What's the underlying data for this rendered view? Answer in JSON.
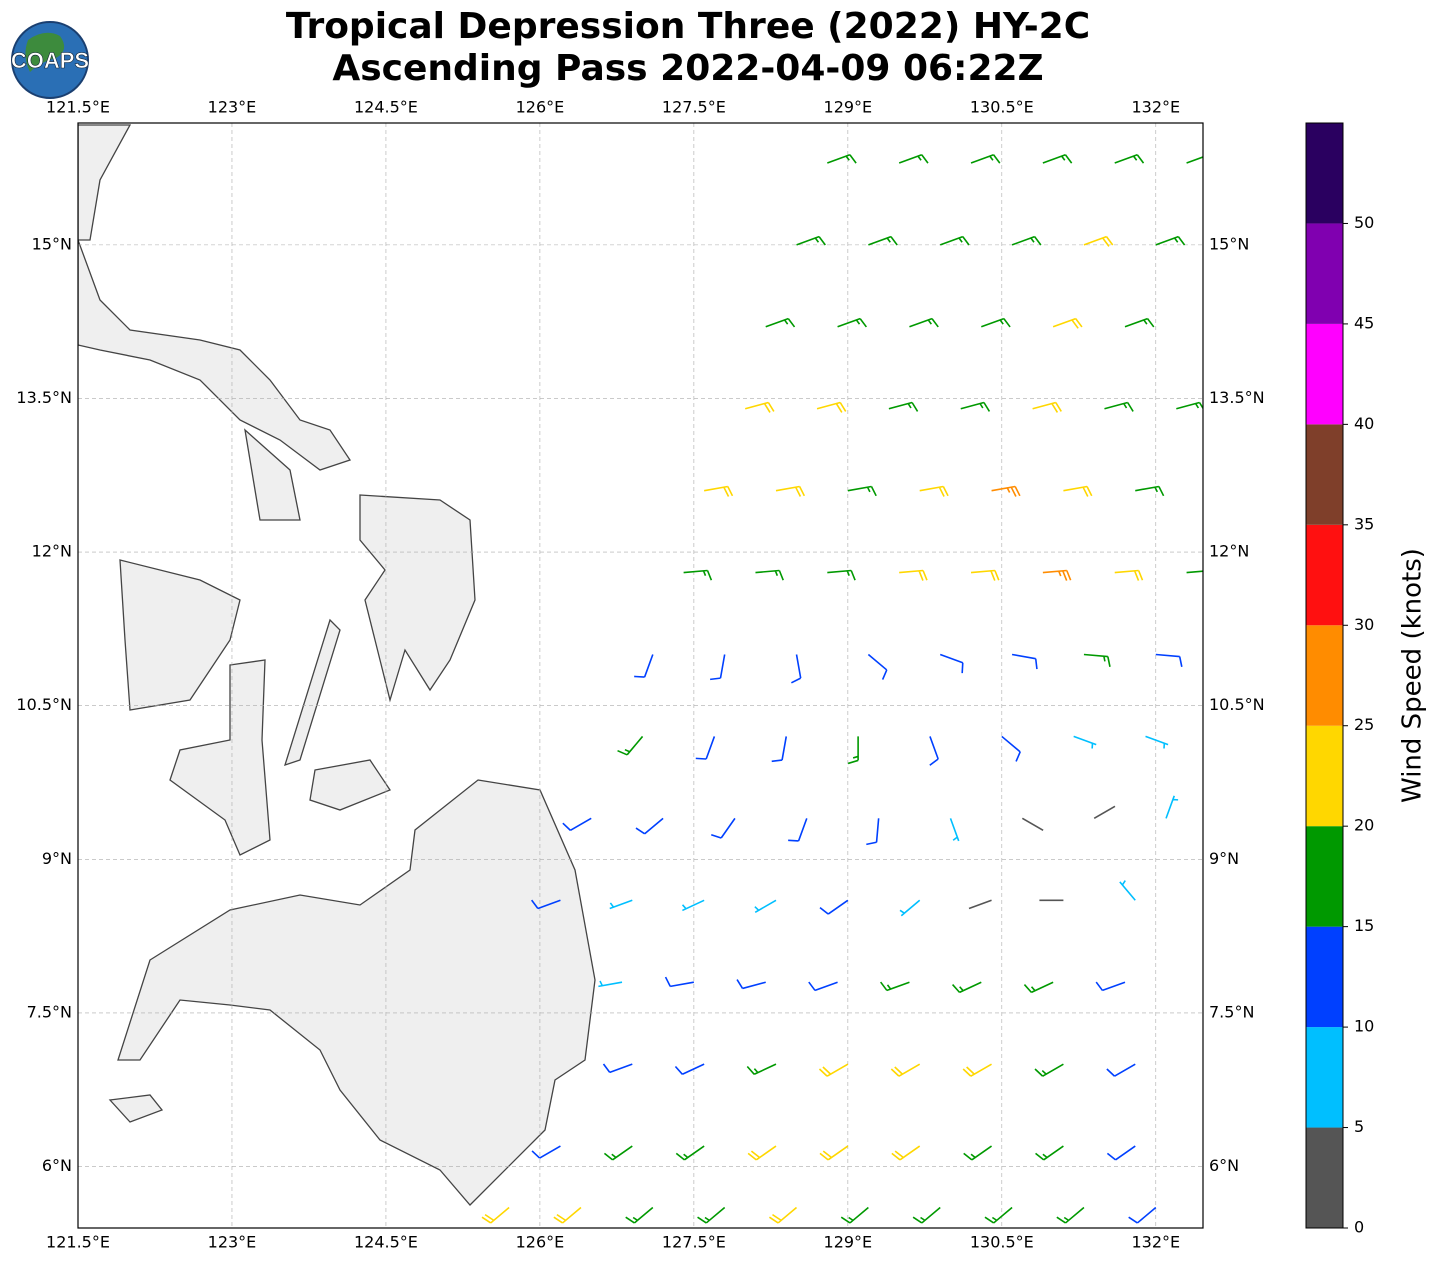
{
  "logo": "COAPS",
  "map_data": {
    "title": "Tropical Depression Three (2022) HY-2C",
    "subtitle": "Ascending Pass 2022-04-09 06:22Z",
    "xlim": [
      121.5,
      132.46
    ],
    "ylim": [
      5.4,
      16.19
    ],
    "xticks": [
      {
        "value": 121.5,
        "label": "121.5°E"
      },
      {
        "value": 123,
        "label": "123°E"
      },
      {
        "value": 124.5,
        "label": "124.5°E"
      },
      {
        "value": 126,
        "label": "126°E"
      },
      {
        "value": 127.5,
        "label": "127.5°E"
      },
      {
        "value": 129,
        "label": "129°E"
      },
      {
        "value": 130.5,
        "label": "130.5°E"
      },
      {
        "value": 132,
        "label": "132°E"
      }
    ],
    "yticks": [
      {
        "value": 6,
        "label": "6°N"
      },
      {
        "value": 7.5,
        "label": "7.5°N"
      },
      {
        "value": 9,
        "label": "9°N"
      },
      {
        "value": 10.5,
        "label": "10.5°N"
      },
      {
        "value": 12,
        "label": "12°N"
      },
      {
        "value": 13.5,
        "label": "13.5°N"
      },
      {
        "value": 15,
        "label": "15°N"
      }
    ],
    "grid": true,
    "colorbar": {
      "label": "Wind Speed (knots)",
      "lim": [
        0,
        55
      ],
      "bounds": [
        0,
        5,
        10,
        15,
        20,
        25,
        30,
        35,
        40,
        45,
        50,
        55
      ],
      "colors": [
        "#555555",
        "#00bfff",
        "#0040ff",
        "#009900",
        "#ffd700",
        "#ff8c00",
        "#ff1010",
        "#7f3f2a",
        "#ff00ff",
        "#8000b0",
        "#2a0060"
      ],
      "ticks": [
        0,
        5,
        10,
        15,
        20,
        25,
        30,
        35,
        40,
        45,
        50
      ]
    },
    "winds": [
      [
        128.8,
        15.8,
        17,
        70
      ],
      [
        129.5,
        15.8,
        17,
        70
      ],
      [
        130.2,
        15.8,
        17,
        70
      ],
      [
        130.9,
        15.8,
        17,
        70
      ],
      [
        131.6,
        15.8,
        17,
        70
      ],
      [
        132.3,
        15.8,
        17,
        70
      ],
      [
        128.5,
        15.0,
        17,
        70
      ],
      [
        129.2,
        15.0,
        17,
        70
      ],
      [
        129.9,
        15.0,
        17,
        70
      ],
      [
        130.6,
        15.0,
        17,
        70
      ],
      [
        131.3,
        15.0,
        22,
        70
      ],
      [
        132.0,
        15.0,
        17,
        70
      ],
      [
        128.2,
        14.2,
        17,
        70
      ],
      [
        128.9,
        14.2,
        17,
        70
      ],
      [
        129.6,
        14.2,
        17,
        70
      ],
      [
        130.3,
        14.2,
        17,
        70
      ],
      [
        131.0,
        14.2,
        22,
        70
      ],
      [
        131.7,
        14.2,
        17,
        70
      ],
      [
        128.0,
        13.4,
        22,
        75
      ],
      [
        128.7,
        13.4,
        22,
        75
      ],
      [
        129.4,
        13.4,
        17,
        75
      ],
      [
        130.1,
        13.4,
        17,
        75
      ],
      [
        130.8,
        13.4,
        22,
        75
      ],
      [
        131.5,
        13.4,
        17,
        75
      ],
      [
        132.2,
        13.4,
        17,
        75
      ],
      [
        127.6,
        12.6,
        22,
        80
      ],
      [
        128.3,
        12.6,
        22,
        80
      ],
      [
        129.0,
        12.6,
        17,
        80
      ],
      [
        129.7,
        12.6,
        22,
        80
      ],
      [
        130.4,
        12.6,
        27,
        80
      ],
      [
        131.1,
        12.6,
        22,
        80
      ],
      [
        131.8,
        12.6,
        17,
        80
      ],
      [
        127.4,
        11.8,
        17,
        85
      ],
      [
        128.1,
        11.8,
        17,
        85
      ],
      [
        128.8,
        11.8,
        17,
        85
      ],
      [
        129.5,
        11.8,
        22,
        85
      ],
      [
        130.2,
        11.8,
        22,
        85
      ],
      [
        130.9,
        11.8,
        27,
        85
      ],
      [
        131.6,
        11.8,
        22,
        85
      ],
      [
        132.3,
        11.8,
        17,
        85
      ],
      [
        127.1,
        11.0,
        12,
        200
      ],
      [
        127.8,
        11.0,
        12,
        190
      ],
      [
        128.5,
        11.0,
        12,
        170
      ],
      [
        129.2,
        11.0,
        12,
        130
      ],
      [
        129.9,
        11.0,
        12,
        110
      ],
      [
        130.6,
        11.0,
        12,
        100
      ],
      [
        131.3,
        11.0,
        17,
        95
      ],
      [
        132.0,
        11.0,
        12,
        95
      ],
      [
        127.0,
        10.2,
        17,
        220
      ],
      [
        127.7,
        10.2,
        12,
        200
      ],
      [
        128.4,
        10.2,
        12,
        190
      ],
      [
        129.1,
        10.2,
        17,
        180
      ],
      [
        129.8,
        10.2,
        12,
        160
      ],
      [
        130.5,
        10.2,
        12,
        130
      ],
      [
        131.2,
        10.2,
        7,
        110
      ],
      [
        131.9,
        10.2,
        7,
        110
      ],
      [
        126.5,
        9.4,
        12,
        240
      ],
      [
        127.2,
        9.4,
        12,
        230
      ],
      [
        127.9,
        9.4,
        12,
        215
      ],
      [
        128.6,
        9.4,
        12,
        200
      ],
      [
        129.3,
        9.4,
        12,
        185
      ],
      [
        130.0,
        9.4,
        7,
        160
      ],
      [
        130.7,
        9.4,
        3,
        120
      ],
      [
        131.4,
        9.4,
        3,
        60
      ],
      [
        132.1,
        9.4,
        7,
        20
      ],
      [
        126.2,
        8.6,
        12,
        250
      ],
      [
        126.9,
        8.6,
        7,
        250
      ],
      [
        127.6,
        8.6,
        7,
        245
      ],
      [
        128.3,
        8.6,
        7,
        240
      ],
      [
        129.0,
        8.6,
        12,
        235
      ],
      [
        129.7,
        8.6,
        7,
        230
      ],
      [
        130.4,
        8.6,
        3,
        250
      ],
      [
        131.1,
        8.6,
        3,
        270
      ],
      [
        131.8,
        8.6,
        7,
        320
      ],
      [
        126.8,
        7.8,
        7,
        260
      ],
      [
        127.5,
        7.8,
        12,
        260
      ],
      [
        128.2,
        7.8,
        12,
        255
      ],
      [
        128.9,
        7.8,
        12,
        250
      ],
      [
        129.6,
        7.8,
        17,
        250
      ],
      [
        130.3,
        7.8,
        17,
        245
      ],
      [
        131.0,
        7.8,
        17,
        245
      ],
      [
        131.7,
        7.8,
        12,
        250
      ],
      [
        126.9,
        7.0,
        12,
        250
      ],
      [
        127.6,
        7.0,
        12,
        245
      ],
      [
        128.3,
        7.0,
        17,
        245
      ],
      [
        129.0,
        7.0,
        22,
        240
      ],
      [
        129.7,
        7.0,
        22,
        240
      ],
      [
        130.4,
        7.0,
        22,
        240
      ],
      [
        131.1,
        7.0,
        17,
        240
      ],
      [
        131.8,
        7.0,
        12,
        240
      ],
      [
        126.2,
        6.2,
        12,
        240
      ],
      [
        126.9,
        6.2,
        17,
        235
      ],
      [
        127.6,
        6.2,
        17,
        235
      ],
      [
        128.3,
        6.2,
        22,
        235
      ],
      [
        129.0,
        6.2,
        22,
        235
      ],
      [
        129.7,
        6.2,
        22,
        235
      ],
      [
        130.4,
        6.2,
        17,
        235
      ],
      [
        131.1,
        6.2,
        17,
        235
      ],
      [
        131.8,
        6.2,
        12,
        235
      ],
      [
        125.7,
        5.6,
        22,
        230
      ],
      [
        126.4,
        5.6,
        22,
        230
      ],
      [
        127.1,
        5.6,
        17,
        230
      ],
      [
        127.8,
        5.6,
        17,
        230
      ],
      [
        128.5,
        5.6,
        22,
        230
      ],
      [
        129.2,
        5.6,
        17,
        230
      ],
      [
        129.9,
        5.6,
        17,
        230
      ],
      [
        130.6,
        5.6,
        17,
        230
      ],
      [
        131.3,
        5.6,
        17,
        230
      ],
      [
        132.0,
        5.6,
        12,
        230
      ]
    ]
  }
}
